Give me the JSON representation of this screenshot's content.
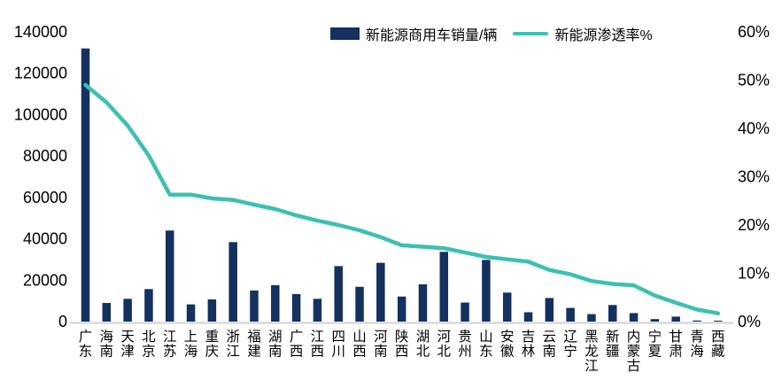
{
  "legend": {
    "bar_label": "新能源商用车销量/辆",
    "line_label": "新能源渗透率%"
  },
  "colors": {
    "bar": "#14315F",
    "line": "#3DC0B1",
    "axis_line": "#D9D9D9",
    "text": "#000000",
    "background": "#FFFFFF"
  },
  "chart_data": {
    "type": "bar+line combo",
    "title": "",
    "grid": false,
    "legend_position": "top-center",
    "categories": [
      "广东",
      "海南",
      "天津",
      "北京",
      "江苏",
      "上海",
      "重庆",
      "浙江",
      "福建",
      "湖南",
      "广西",
      "江西",
      "四川",
      "山西",
      "河南",
      "陕西",
      "湖北",
      "河北",
      "贵州",
      "山东",
      "安徽",
      "吉林",
      "云南",
      "辽宁",
      "黑龙江",
      "新疆",
      "内蒙古",
      "宁夏",
      "甘肃",
      "青海",
      "西藏"
    ],
    "series": [
      {
        "name": "新能源商用车销量/辆",
        "type": "bar",
        "y_axis": "left",
        "color": "#14315F",
        "values": [
          132000,
          9000,
          11000,
          15700,
          44000,
          8300,
          10700,
          38400,
          15000,
          17600,
          13300,
          11000,
          26800,
          16800,
          28400,
          12100,
          18000,
          33700,
          9200,
          29800,
          14000,
          4500,
          11400,
          6600,
          3600,
          8000,
          4100,
          1200,
          2400,
          500,
          400
        ]
      },
      {
        "name": "新能源渗透率%",
        "type": "line",
        "y_axis": "right",
        "color": "#3DC0B1",
        "values": [
          49.0,
          45.4,
          40.6,
          34.4,
          26.3,
          26.3,
          25.5,
          25.2,
          24.2,
          23.3,
          22.0,
          20.9,
          20.0,
          18.9,
          17.5,
          15.8,
          15.5,
          15.2,
          14.3,
          13.4,
          12.9,
          12.4,
          10.7,
          9.8,
          8.4,
          7.8,
          7.5,
          5.4,
          3.9,
          2.5,
          1.7
        ]
      }
    ],
    "left_axis": {
      "min": 0,
      "max": 140000,
      "step": 20000,
      "tick_labels": [
        "0",
        "20000",
        "40000",
        "60000",
        "80000",
        "100000",
        "120000",
        "140000"
      ]
    },
    "right_axis": {
      "min": 0,
      "max": 60,
      "step": 10,
      "unit": "%",
      "tick_labels": [
        "0%",
        "10%",
        "20%",
        "30%",
        "40%",
        "50%",
        "60%"
      ]
    }
  }
}
